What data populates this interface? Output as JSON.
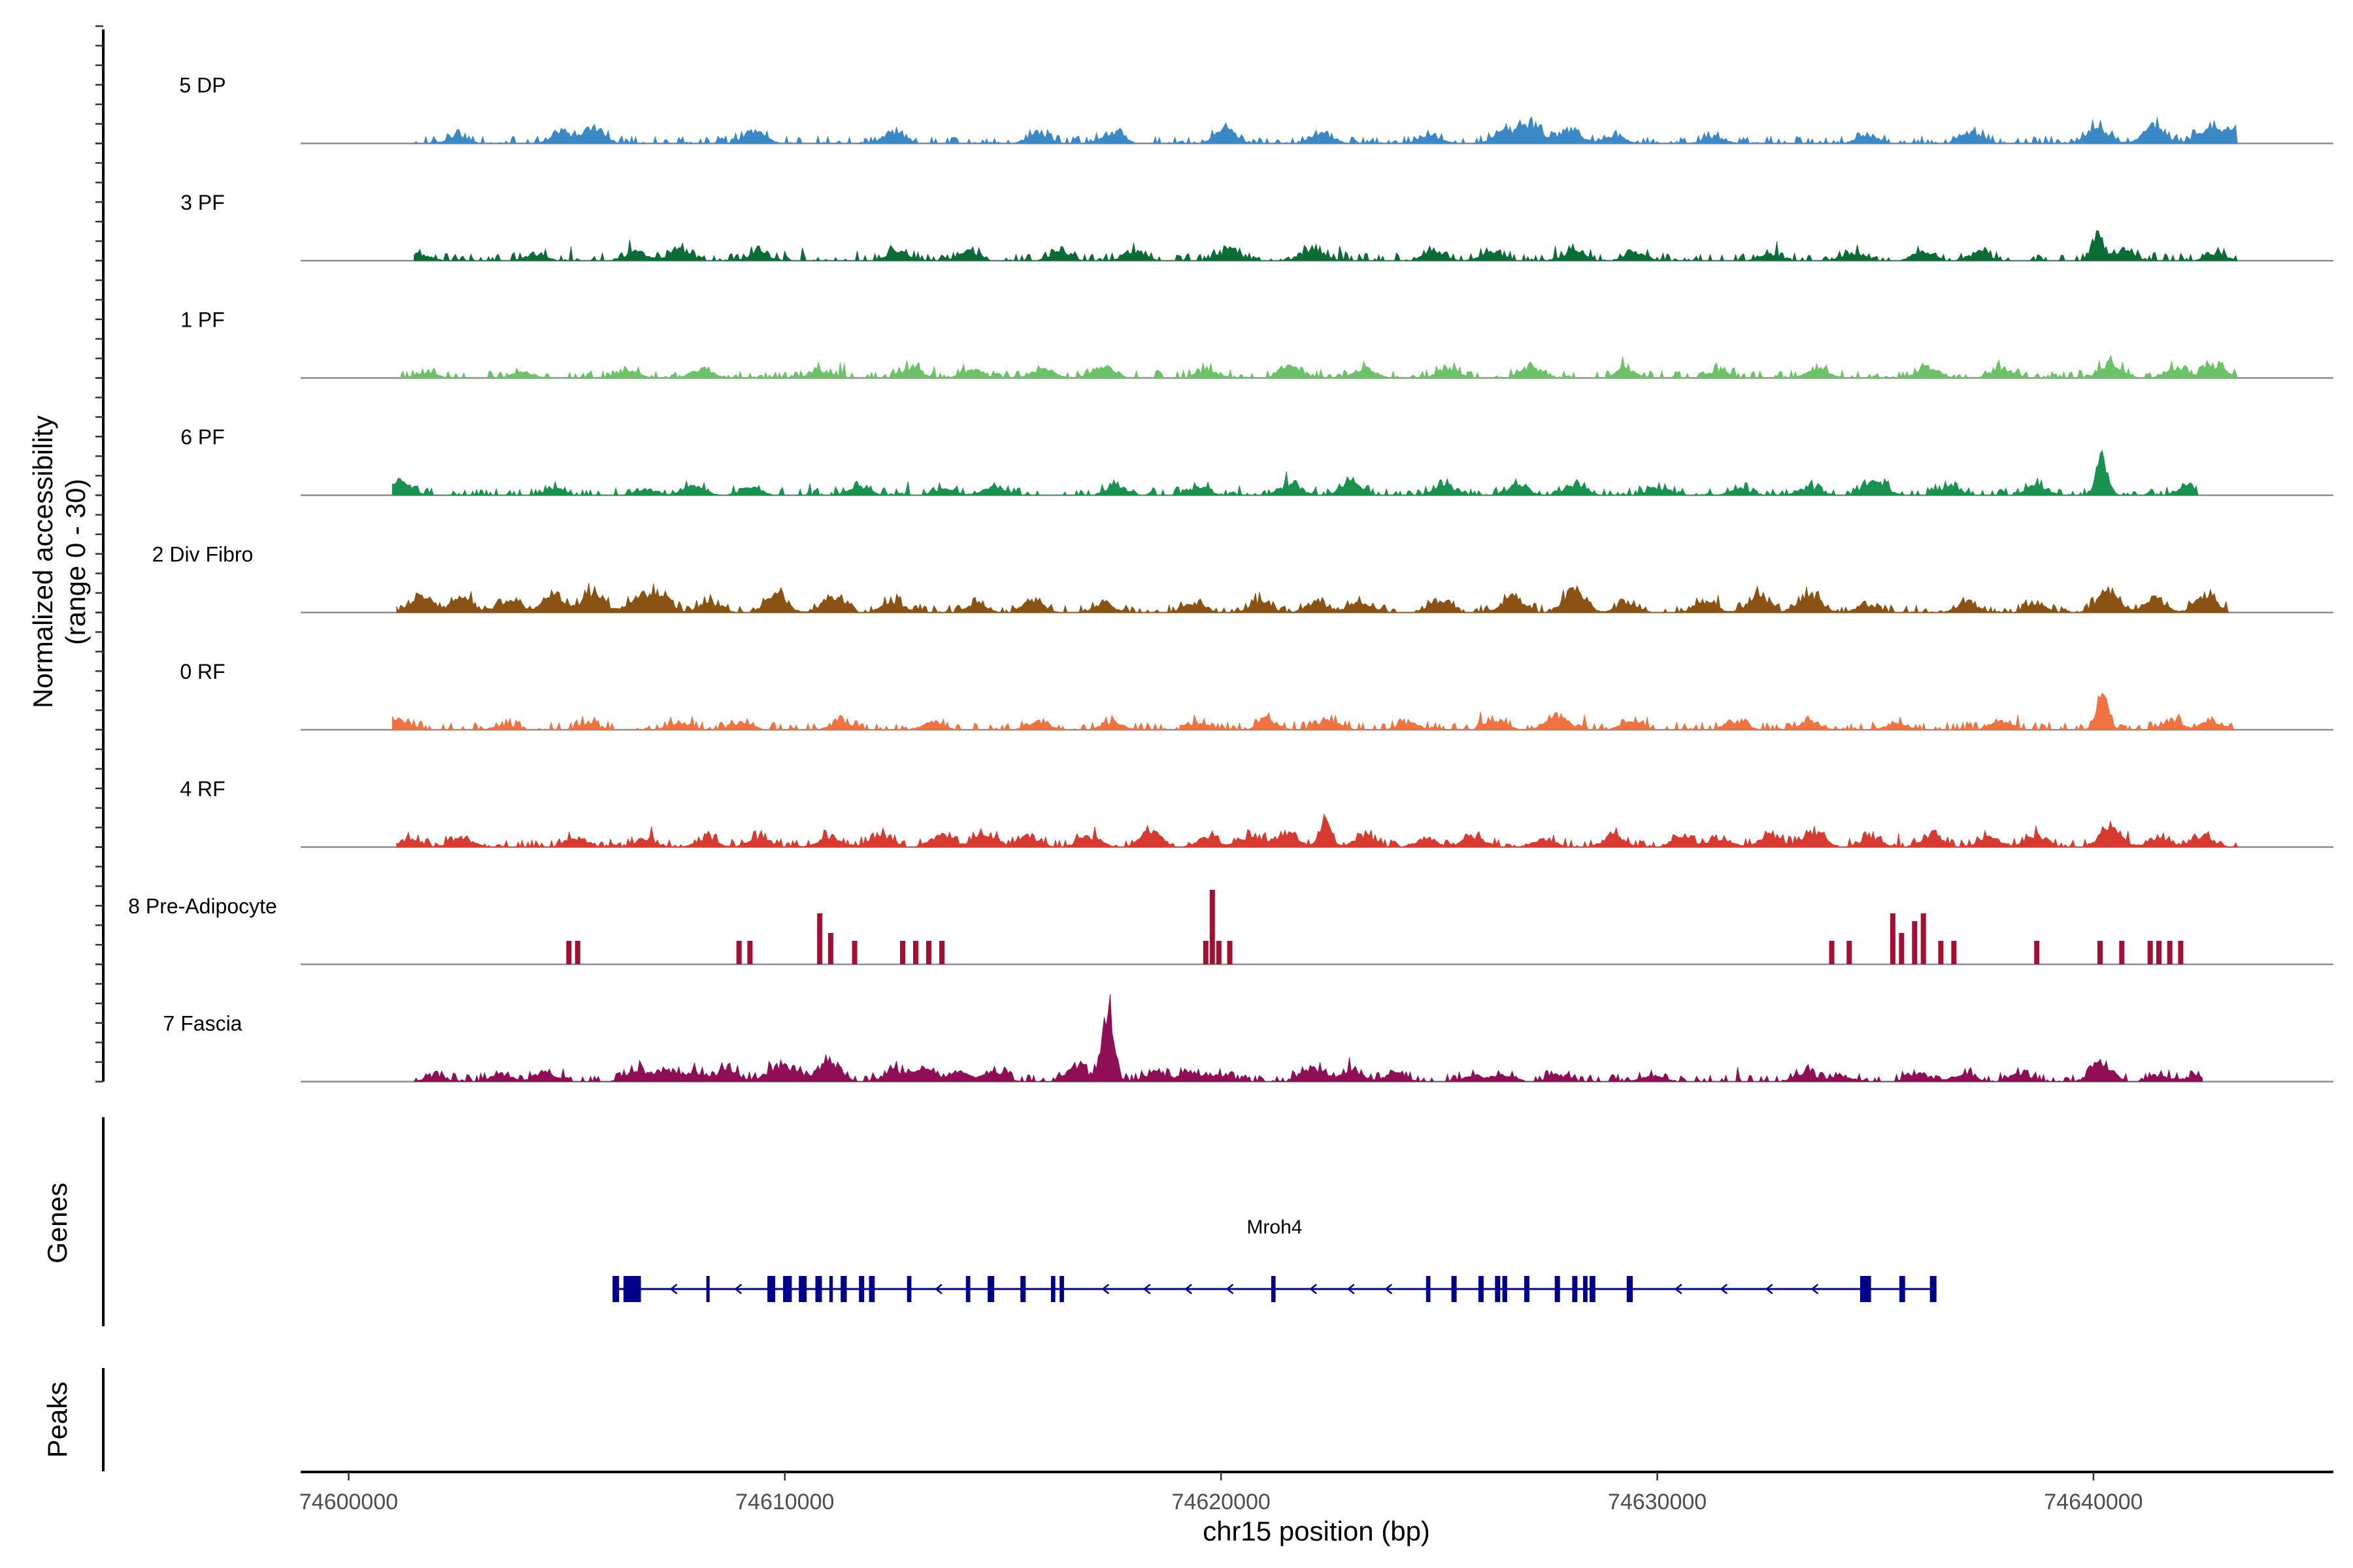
{
  "chart_data": {
    "type": "area",
    "title": "",
    "xlabel": "chr15 position (bp)",
    "ylabel": "Normalized accessibility",
    "ylabel_range": "(range 0 - 30)",
    "xlim": [
      74598900,
      74645500
    ],
    "ylim": [
      0,
      30
    ],
    "x_ticks": [
      {
        "value": 74600000,
        "label": "74600000"
      },
      {
        "value": 74610000,
        "label": "74610000"
      },
      {
        "value": 74620000,
        "label": "74620000"
      },
      {
        "value": 74630000,
        "label": "74630000"
      },
      {
        "value": 74640000,
        "label": "74640000"
      }
    ],
    "series": [
      {
        "name": "5 DP",
        "label": "5 DP",
        "color": "#3a88c6",
        "start": 74601500,
        "end": 74643300,
        "peaks": [
          [
            74602500,
            4
          ],
          [
            74604900,
            6
          ],
          [
            74605600,
            9
          ],
          [
            74609300,
            8
          ],
          [
            74612500,
            7
          ],
          [
            74615800,
            6
          ],
          [
            74617500,
            7
          ],
          [
            74620100,
            8
          ],
          [
            74622300,
            6
          ],
          [
            74624800,
            5
          ],
          [
            74626500,
            8
          ],
          [
            74627100,
            12
          ],
          [
            74628000,
            9
          ],
          [
            74629000,
            5
          ],
          [
            74631300,
            4
          ],
          [
            74634800,
            5
          ],
          [
            74637200,
            7
          ],
          [
            74640100,
            10
          ],
          [
            74641400,
            11
          ],
          [
            74642600,
            9
          ],
          [
            74643200,
            8
          ]
        ]
      },
      {
        "name": "3 PF",
        "label": "3 PF",
        "color": "#0b6c37",
        "start": 74601500,
        "end": 74643300,
        "peaks": [
          [
            74601700,
            3
          ],
          [
            74604300,
            4
          ],
          [
            74606600,
            6
          ],
          [
            74607600,
            7
          ],
          [
            74609400,
            5
          ],
          [
            74612600,
            5
          ],
          [
            74614200,
            6
          ],
          [
            74616300,
            5
          ],
          [
            74618000,
            6
          ],
          [
            74620200,
            7
          ],
          [
            74622100,
            8
          ],
          [
            74624900,
            6
          ],
          [
            74626200,
            6
          ],
          [
            74628100,
            6
          ],
          [
            74629500,
            5
          ],
          [
            74632600,
            4
          ],
          [
            74634500,
            5
          ],
          [
            74636100,
            6
          ],
          [
            74637400,
            5
          ],
          [
            74640100,
            16
          ],
          [
            74640700,
            6
          ],
          [
            74642800,
            4
          ]
        ]
      },
      {
        "name": "1 PF",
        "label": "1 PF",
        "color": "#6cc267",
        "start": 74601200,
        "end": 74643300,
        "peaks": [
          [
            74601800,
            3
          ],
          [
            74604000,
            4
          ],
          [
            74606400,
            5
          ],
          [
            74608100,
            6
          ],
          [
            74610800,
            5
          ],
          [
            74612900,
            6
          ],
          [
            74614300,
            5
          ],
          [
            74615900,
            6
          ],
          [
            74617300,
            8
          ],
          [
            74619700,
            5
          ],
          [
            74621600,
            7
          ],
          [
            74623300,
            6
          ],
          [
            74625200,
            6
          ],
          [
            74627100,
            7
          ],
          [
            74629300,
            5
          ],
          [
            74631400,
            5
          ],
          [
            74633700,
            6
          ],
          [
            74636200,
            7
          ],
          [
            74637900,
            6
          ],
          [
            74640400,
            10
          ],
          [
            74641900,
            7
          ],
          [
            74642800,
            8
          ]
        ]
      },
      {
        "name": "6 PF",
        "label": "6 PF",
        "color": "#1a924f",
        "start": 74601000,
        "end": 74642400,
        "peaks": [
          [
            74601200,
            8
          ],
          [
            74604700,
            4
          ],
          [
            74606800,
            4
          ],
          [
            74607900,
            7
          ],
          [
            74609200,
            5
          ],
          [
            74611700,
            5
          ],
          [
            74613700,
            4
          ],
          [
            74614800,
            6
          ],
          [
            74617600,
            6
          ],
          [
            74619500,
            5
          ],
          [
            74621600,
            7
          ],
          [
            74623000,
            8
          ],
          [
            74625100,
            6
          ],
          [
            74626800,
            6
          ],
          [
            74628100,
            7
          ],
          [
            74630000,
            5
          ],
          [
            74631900,
            4
          ],
          [
            74633500,
            5
          ],
          [
            74635000,
            9
          ],
          [
            74636700,
            5
          ],
          [
            74638700,
            6
          ],
          [
            74640200,
            22
          ],
          [
            74642200,
            6
          ]
        ]
      },
      {
        "name": "2 Div Fibro",
        "label": "2 Div Fibro",
        "color": "#8b5313",
        "start": 74601100,
        "end": 74643100,
        "peaks": [
          [
            74601700,
            11
          ],
          [
            74602600,
            9
          ],
          [
            74603700,
            8
          ],
          [
            74604700,
            12
          ],
          [
            74605600,
            14
          ],
          [
            74606600,
            9
          ],
          [
            74607100,
            12
          ],
          [
            74608300,
            7
          ],
          [
            74609800,
            11
          ],
          [
            74611100,
            10
          ],
          [
            74612500,
            7
          ],
          [
            74614400,
            5
          ],
          [
            74615700,
            7
          ],
          [
            74617300,
            5
          ],
          [
            74619400,
            6
          ],
          [
            74620900,
            7
          ],
          [
            74622200,
            6
          ],
          [
            74623200,
            7
          ],
          [
            74625000,
            8
          ],
          [
            74626700,
            10
          ],
          [
            74628100,
            15
          ],
          [
            74629300,
            6
          ],
          [
            74631100,
            7
          ],
          [
            74632300,
            10
          ],
          [
            74633500,
            12
          ],
          [
            74634800,
            5
          ],
          [
            74637100,
            6
          ],
          [
            74638700,
            5
          ],
          [
            74640300,
            13
          ],
          [
            74641400,
            9
          ],
          [
            74642600,
            11
          ]
        ]
      },
      {
        "name": "0 RF",
        "label": "0 RF",
        "color": "#f07243",
        "start": 74601000,
        "end": 74643300,
        "peaks": [
          [
            74601200,
            6
          ],
          [
            74603600,
            3
          ],
          [
            74605500,
            4
          ],
          [
            74607600,
            5
          ],
          [
            74609000,
            4
          ],
          [
            74611300,
            5
          ],
          [
            74613400,
            5
          ],
          [
            74615800,
            5
          ],
          [
            74617500,
            5
          ],
          [
            74619500,
            4
          ],
          [
            74621100,
            5
          ],
          [
            74622500,
            6
          ],
          [
            74624300,
            4
          ],
          [
            74626300,
            6
          ],
          [
            74627700,
            9
          ],
          [
            74629400,
            5
          ],
          [
            74631800,
            5
          ],
          [
            74633500,
            5
          ],
          [
            74635500,
            4
          ],
          [
            74637900,
            5
          ],
          [
            74640200,
            23
          ],
          [
            74641800,
            5
          ],
          [
            74642700,
            5
          ]
        ]
      },
      {
        "name": "4 RF",
        "label": "4 RF",
        "color": "#d73a2f",
        "start": 74601100,
        "end": 74643300,
        "peaks": [
          [
            74601400,
            5
          ],
          [
            74602600,
            6
          ],
          [
            74605200,
            6
          ],
          [
            74606800,
            5
          ],
          [
            74608200,
            5
          ],
          [
            74609400,
            6
          ],
          [
            74611000,
            6
          ],
          [
            74612200,
            8
          ],
          [
            74613600,
            8
          ],
          [
            74614600,
            9
          ],
          [
            74615600,
            7
          ],
          [
            74617000,
            7
          ],
          [
            74618400,
            9
          ],
          [
            74619700,
            6
          ],
          [
            74620700,
            8
          ],
          [
            74621500,
            9
          ],
          [
            74622400,
            18
          ],
          [
            74623300,
            7
          ],
          [
            74624700,
            5
          ],
          [
            74625800,
            7
          ],
          [
            74627400,
            5
          ],
          [
            74629000,
            7
          ],
          [
            74630600,
            6
          ],
          [
            74631500,
            5
          ],
          [
            74632600,
            8
          ],
          [
            74633600,
            10
          ],
          [
            74634900,
            6
          ],
          [
            74636300,
            7
          ],
          [
            74637600,
            6
          ],
          [
            74638700,
            8
          ],
          [
            74640400,
            12
          ],
          [
            74641500,
            6
          ],
          [
            74642500,
            7
          ]
        ]
      },
      {
        "name": "8 Pre-Adipocyte",
        "label": "8 Pre-Adipocyte",
        "color": "#a60f34",
        "start": 74604800,
        "end": 74642200,
        "style": "bars",
        "peaks": [
          [
            74605050,
            12
          ],
          [
            74605250,
            12
          ],
          [
            74608950,
            12
          ],
          [
            74609200,
            12
          ],
          [
            74610800,
            26
          ],
          [
            74611050,
            16
          ],
          [
            74611600,
            12
          ],
          [
            74612700,
            12
          ],
          [
            74613000,
            12
          ],
          [
            74613300,
            12
          ],
          [
            74613600,
            12
          ],
          [
            74619650,
            12
          ],
          [
            74619800,
            38
          ],
          [
            74619950,
            12
          ],
          [
            74620200,
            12
          ],
          [
            74634000,
            12
          ],
          [
            74634400,
            12
          ],
          [
            74635400,
            26
          ],
          [
            74635600,
            16
          ],
          [
            74635900,
            22
          ],
          [
            74636100,
            26
          ],
          [
            74636500,
            12
          ],
          [
            74636800,
            12
          ],
          [
            74638700,
            12
          ],
          [
            74640150,
            12
          ],
          [
            74640650,
            12
          ],
          [
            74641300,
            12
          ],
          [
            74641500,
            12
          ],
          [
            74641750,
            12
          ],
          [
            74642000,
            12
          ]
        ]
      },
      {
        "name": "7 Fascia",
        "label": "7 Fascia",
        "color": "#8f0f57",
        "start": 74601500,
        "end": 74642500,
        "peaks": [
          [
            74602000,
            3
          ],
          [
            74603500,
            5
          ],
          [
            74604500,
            6
          ],
          [
            74606600,
            8
          ],
          [
            74607300,
            7
          ],
          [
            74607900,
            6
          ],
          [
            74608700,
            7
          ],
          [
            74609800,
            8
          ],
          [
            74610200,
            6
          ],
          [
            74611000,
            13
          ],
          [
            74612500,
            7
          ],
          [
            74613200,
            8
          ],
          [
            74614000,
            7
          ],
          [
            74614800,
            7
          ],
          [
            74616700,
            10
          ],
          [
            74617400,
            50
          ],
          [
            74618500,
            6
          ],
          [
            74619300,
            6
          ],
          [
            74620000,
            4
          ],
          [
            74622100,
            8
          ],
          [
            74623000,
            7
          ],
          [
            74624000,
            5
          ],
          [
            74625800,
            4
          ],
          [
            74626500,
            4
          ],
          [
            74627700,
            4
          ],
          [
            74629900,
            4
          ],
          [
            74633400,
            6
          ],
          [
            74634200,
            4
          ],
          [
            74636000,
            5
          ],
          [
            74637000,
            5
          ],
          [
            74638300,
            5
          ],
          [
            74640200,
            12
          ],
          [
            74641500,
            4
          ],
          [
            74642400,
            4
          ]
        ]
      }
    ],
    "genes": [
      {
        "name": "Mroh4",
        "strand": "-",
        "start": 74606050,
        "end": 74636400,
        "exons": [
          [
            74606050,
            74606200
          ],
          [
            74606300,
            74606700
          ],
          [
            74608200,
            74608260
          ],
          [
            74609600,
            74609780
          ],
          [
            74609960,
            74610160
          ],
          [
            74610320,
            74610500
          ],
          [
            74610700,
            74610850
          ],
          [
            74611020,
            74611100
          ],
          [
            74611280,
            74611420
          ],
          [
            74611700,
            74611820
          ],
          [
            74611930,
            74612060
          ],
          [
            74612800,
            74612900
          ],
          [
            74614150,
            74614250
          ],
          [
            74614650,
            74614800
          ],
          [
            74615400,
            74615520
          ],
          [
            74616100,
            74616200
          ],
          [
            74616300,
            74616400
          ],
          [
            74621150,
            74621250
          ],
          [
            74624700,
            74624800
          ],
          [
            74625280,
            74625400
          ],
          [
            74625900,
            74626020
          ],
          [
            74626280,
            74626400
          ],
          [
            74626450,
            74626560
          ],
          [
            74626950,
            74627070
          ],
          [
            74627650,
            74627770
          ],
          [
            74628050,
            74628170
          ],
          [
            74628300,
            74628400
          ],
          [
            74628450,
            74628580
          ],
          [
            74629300,
            74629440
          ],
          [
            74634650,
            74634900
          ],
          [
            74635550,
            74635680
          ],
          [
            74636250,
            74636400
          ]
        ]
      }
    ],
    "genes_track_label": "Genes",
    "peaks_track_label": "Peaks"
  }
}
